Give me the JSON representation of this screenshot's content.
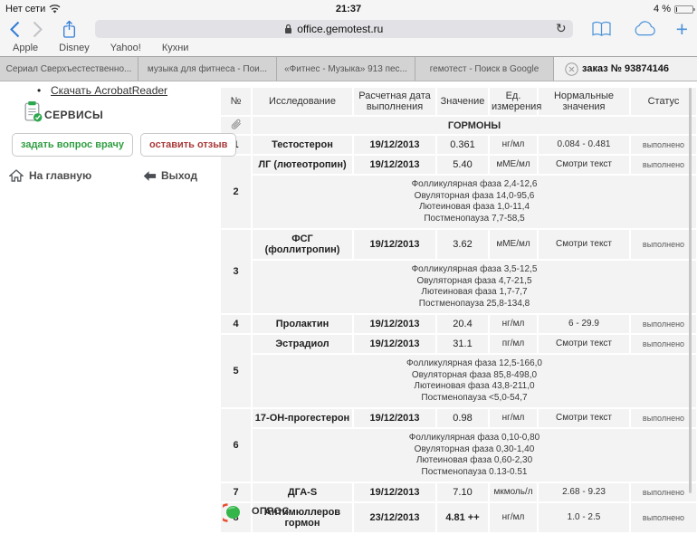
{
  "status_bar": {
    "carrier": "Нет сети",
    "time": "21:37",
    "battery_percent": "4 %"
  },
  "toolbar": {
    "url": "office.gemotest.ru"
  },
  "bookmarks_bar": {
    "items": [
      "Apple",
      "Disney",
      "Yahoo!",
      "Кухни"
    ]
  },
  "tab_bar": {
    "tabs": [
      "Сериал Сверхъестественно...",
      "музыка для фитнеса - Пои...",
      "«Фитнес - Музыка» 913 пес...",
      "гемотест - Поиск в Google"
    ],
    "active_tab": "заказ № 93874146"
  },
  "sidebar": {
    "acrobat_link": "Скачать AcrobatReader",
    "services_label": "СЕРВИСЫ",
    "ask_doctor_button": "задать вопрос врачу",
    "feedback_button": "оставить отзыв",
    "home_link": "На главную",
    "logout_link": "Выход"
  },
  "table": {
    "headers": [
      "№",
      "Исследование",
      "Расчетная дата выполнения",
      "Значение",
      "Ед. измерения",
      "Нормальные значения",
      "Статус"
    ],
    "section": "ГОРМОНЫ",
    "section_icon": "paperclip-icon",
    "rows": [
      {
        "num": "1",
        "name": "Тестостерон",
        "date": "19/12/2013",
        "value": "0.361",
        "unit": "нг/мл",
        "norm": "0.084 - 0.481",
        "status": "выполнено"
      },
      {
        "num": "2",
        "name": "ЛГ (лютеотропин)",
        "date": "19/12/2013",
        "value": "5.40",
        "unit": "мМЕ/мл",
        "norm": "Смотри текст",
        "status": "выполнено",
        "details": [
          "Фолликулярная фаза 2,4-12,6",
          "Овуляторная фаза 14,0-95,6",
          "Лютеиновая фаза 1,0-11,4",
          "Постменопауза 7,7-58,5"
        ]
      },
      {
        "num": "3",
        "name": "ФСГ (фоллитропин)",
        "date": "19/12/2013",
        "value": "3.62",
        "unit": "мМЕ/мл",
        "norm": "Смотри текст",
        "status": "выполнено",
        "details": [
          "Фолликулярная фаза 3,5-12,5",
          "Овуляторная фаза 4,7-21,5",
          "Лютеиновая фаза 1,7-7,7",
          "Постменопауза 25,8-134,8"
        ]
      },
      {
        "num": "4",
        "name": "Пролактин",
        "date": "19/12/2013",
        "value": "20.4",
        "unit": "нг/мл",
        "norm": "6 - 29.9",
        "status": "выполнено"
      },
      {
        "num": "5",
        "name": "Эстрадиол",
        "date": "19/12/2013",
        "value": "31.1",
        "unit": "пг/мл",
        "norm": "Смотри текст",
        "status": "выполнено",
        "details": [
          "Фолликулярная фаза 12,5-166,0",
          "Овуляторная фаза 85,8-498,0",
          "Лютеиновая фаза 43,8-211,0",
          "Постменопауза <5,0-54,7"
        ]
      },
      {
        "num": "6",
        "name": "17-ОН-прогестерон",
        "date": "19/12/2013",
        "value": "0.98",
        "unit": "нг/мл",
        "norm": "Смотри текст",
        "status": "выполнено",
        "details": [
          "Фолликулярная фаза 0,10-0,80",
          "Овуляторная фаза 0,30-1,40",
          "Лютеиновая фаза 0,60-2,30",
          "Постменопауза 0.13-0.51"
        ]
      },
      {
        "num": "7",
        "name": "ДГА-S",
        "date": "19/12/2013",
        "value": "7.10",
        "unit": "мкмоль/л",
        "norm": "2.68 - 9.23",
        "status": "выполнено"
      },
      {
        "num": "8",
        "name": "Антимюллеров гормон",
        "date": "23/12/2013",
        "value": "4.81 ++",
        "value_bold": true,
        "unit": "нг/мл",
        "norm": "1.0 - 2.5",
        "status": "выполнено"
      }
    ]
  },
  "footer": {
    "survey_label": "ОПРОС"
  },
  "colors": {
    "header_gray": "#c8c8c8",
    "green_band": "#a8cfba",
    "attach_cell": "#cfe5d9",
    "row_bg": "#f3f3f3",
    "icon_blue": "#4c93d9",
    "button_green": "#2f9e41",
    "button_red": "#aa3939",
    "opros_green": "#33b54a",
    "opros_red": "#e84f2e"
  }
}
